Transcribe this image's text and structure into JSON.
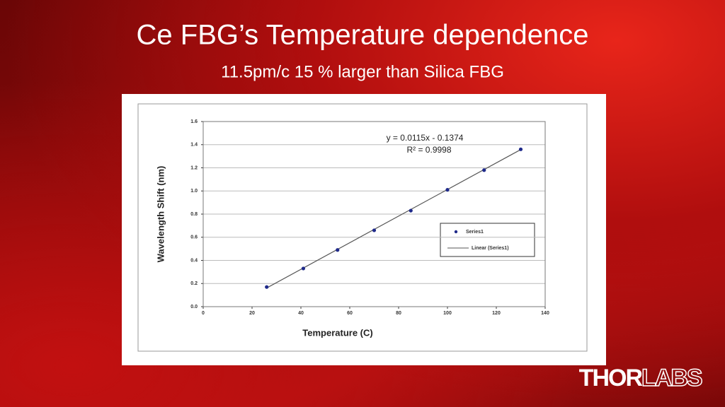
{
  "slide": {
    "title": "Ce FBG’s Temperature dependence",
    "subtitle": "11.5pm/c 15 % larger than Silica FBG",
    "logo": {
      "bold": "THOR",
      "outline": "LABS"
    }
  },
  "chart_data": {
    "type": "scatter",
    "xlabel": "Temperature (C)",
    "ylabel": "Wavelength Shift (nm)",
    "annotations": [
      "y = 0.0115x - 0.1374",
      "R² = 0.9998"
    ],
    "series": [
      {
        "name": "Series1",
        "color": "#1f2a8a",
        "x": [
          26,
          41,
          55,
          70,
          85,
          100,
          115,
          130
        ],
        "values": [
          0.17,
          0.33,
          0.49,
          0.66,
          0.83,
          1.01,
          1.18,
          1.36
        ]
      }
    ],
    "trendline": {
      "name": "Linear (Series1)",
      "color": "#555555",
      "x": [
        26,
        130
      ],
      "values": [
        0.1616,
        1.3576
      ]
    },
    "xlim": [
      0,
      140
    ],
    "xticks": [
      0,
      20,
      40,
      60,
      80,
      100,
      120,
      140
    ],
    "ylim": [
      0,
      1.6
    ],
    "yticks": [
      {
        "value": 0,
        "label": "0.0"
      },
      0.2,
      0.4,
      0.6,
      0.8,
      {
        "value": 1,
        "label": "1.0"
      },
      1.2,
      1.4,
      1.6
    ],
    "grid": true,
    "legend": "right"
  }
}
